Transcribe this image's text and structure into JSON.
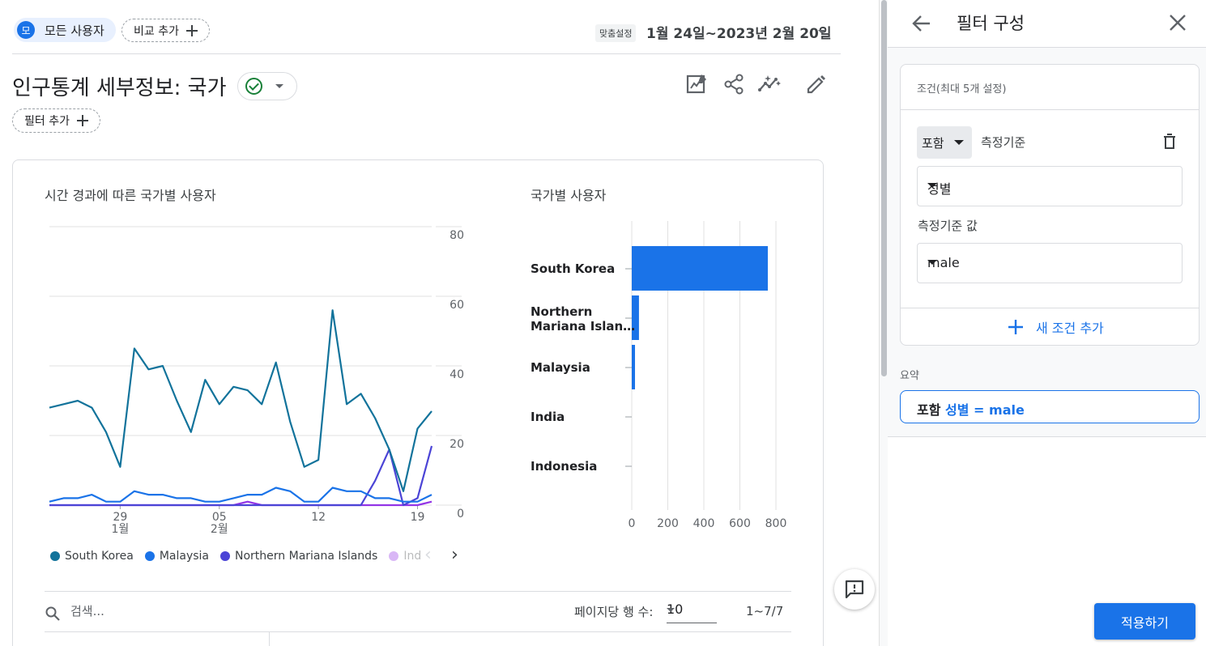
{
  "header": {
    "segment_avatar": "모",
    "segment_label": "모든 사용자",
    "compare_label": "비교 추가",
    "date_custom": "맞춤설정",
    "date_range": "1월 24일~2023년 2월 20일"
  },
  "report": {
    "title": "인구통계 세부정보: 국가",
    "filter_label": "필터 추가"
  },
  "line_card": {
    "title": "시간 경과에 따른 국가별 사용자"
  },
  "bar_card": {
    "title": "국가별 사용자"
  },
  "legend": [
    {
      "label": "South Korea",
      "color": "#12739b"
    },
    {
      "label": "Malaysia",
      "color": "#1a73e8"
    },
    {
      "label": "Northern Mariana Islands",
      "color": "#4b44d6"
    },
    {
      "label": "Ind",
      "color": "#9334e6"
    }
  ],
  "chart_data": [
    {
      "type": "line",
      "title": "시간 경과에 따른 국가별 사용자",
      "x_tick_labels": [
        {
          "top": "29",
          "bottom": "1월"
        },
        {
          "top": "05",
          "bottom": "2월"
        },
        {
          "top": "12",
          "bottom": ""
        },
        {
          "top": "19",
          "bottom": ""
        }
      ],
      "x": [
        "01-24",
        "01-25",
        "01-26",
        "01-27",
        "01-28",
        "01-29",
        "01-30",
        "01-31",
        "02-01",
        "02-02",
        "02-03",
        "02-04",
        "02-05",
        "02-06",
        "02-07",
        "02-08",
        "02-09",
        "02-10",
        "02-11",
        "02-12",
        "02-13",
        "02-14",
        "02-15",
        "02-16",
        "02-17",
        "02-18",
        "02-19",
        "02-20"
      ],
      "y_ticks": [
        "80",
        "60",
        "40",
        "20",
        "0"
      ],
      "ylim": [
        0,
        80
      ],
      "series": [
        {
          "name": "South Korea",
          "color": "#12739b",
          "values": [
            28,
            29,
            30,
            28,
            21,
            11,
            45,
            39,
            40,
            30,
            21,
            36,
            29,
            34,
            33,
            29,
            41,
            24,
            11,
            13,
            56,
            29,
            32,
            25,
            16,
            4,
            22,
            27
          ]
        },
        {
          "name": "Malaysia",
          "color": "#1a73e8",
          "values": [
            1,
            2,
            2,
            3,
            1,
            1,
            4,
            3,
            3,
            2,
            2,
            1,
            1,
            2,
            3,
            3,
            5,
            4,
            1,
            1,
            5,
            4,
            4,
            2,
            2,
            1,
            1,
            3
          ]
        },
        {
          "name": "Northern Mariana Islands",
          "color": "#4b44d6",
          "values": [
            0,
            0,
            0,
            0,
            0,
            0,
            0,
            0,
            0,
            0,
            0,
            0,
            0,
            0,
            0,
            0,
            0,
            0,
            0,
            0,
            0,
            0,
            0,
            7,
            16,
            0,
            2,
            17
          ]
        },
        {
          "name": "India",
          "color": "#9334e6",
          "values": [
            0,
            0,
            0,
            0,
            0,
            0,
            0,
            0,
            0,
            0,
            0,
            0,
            0,
            0,
            1,
            0,
            0,
            0,
            0,
            0,
            0,
            0,
            0,
            0,
            0,
            0,
            0,
            1
          ]
        }
      ]
    },
    {
      "type": "bar",
      "title": "국가별 사용자",
      "orientation": "horizontal",
      "categories": [
        "South Korea",
        "Northern Mariana Islands",
        "Malaysia",
        "India",
        "Indonesia"
      ],
      "category_labels": [
        "South Korea",
        "Northern Mariana Islan…",
        "Malaysia",
        "India",
        "Indonesia"
      ],
      "values": [
        755,
        40,
        18,
        0,
        0
      ],
      "x_ticks": [
        "0",
        "200",
        "400",
        "600",
        "800"
      ],
      "xlim": [
        0,
        800
      ],
      "color": "#1a73e8"
    }
  ],
  "table": {
    "search_placeholder": "검색...",
    "rows_label": "페이지당 행 수:",
    "rows_value": "10",
    "page_count": "1~7/7"
  },
  "panel": {
    "title": "필터 구성",
    "condition_header": "조건(최대 5개 설정)",
    "include_label": "포함",
    "dimension_label": "측정기준",
    "dimension_value": "성별",
    "value_label": "측정기준 값",
    "value_value": "male",
    "add_condition": "새 조건 추가",
    "summary_label": "요약",
    "summary_keyword": "포함",
    "summary_expression": "성별 = male",
    "apply_label": "적용하기"
  }
}
